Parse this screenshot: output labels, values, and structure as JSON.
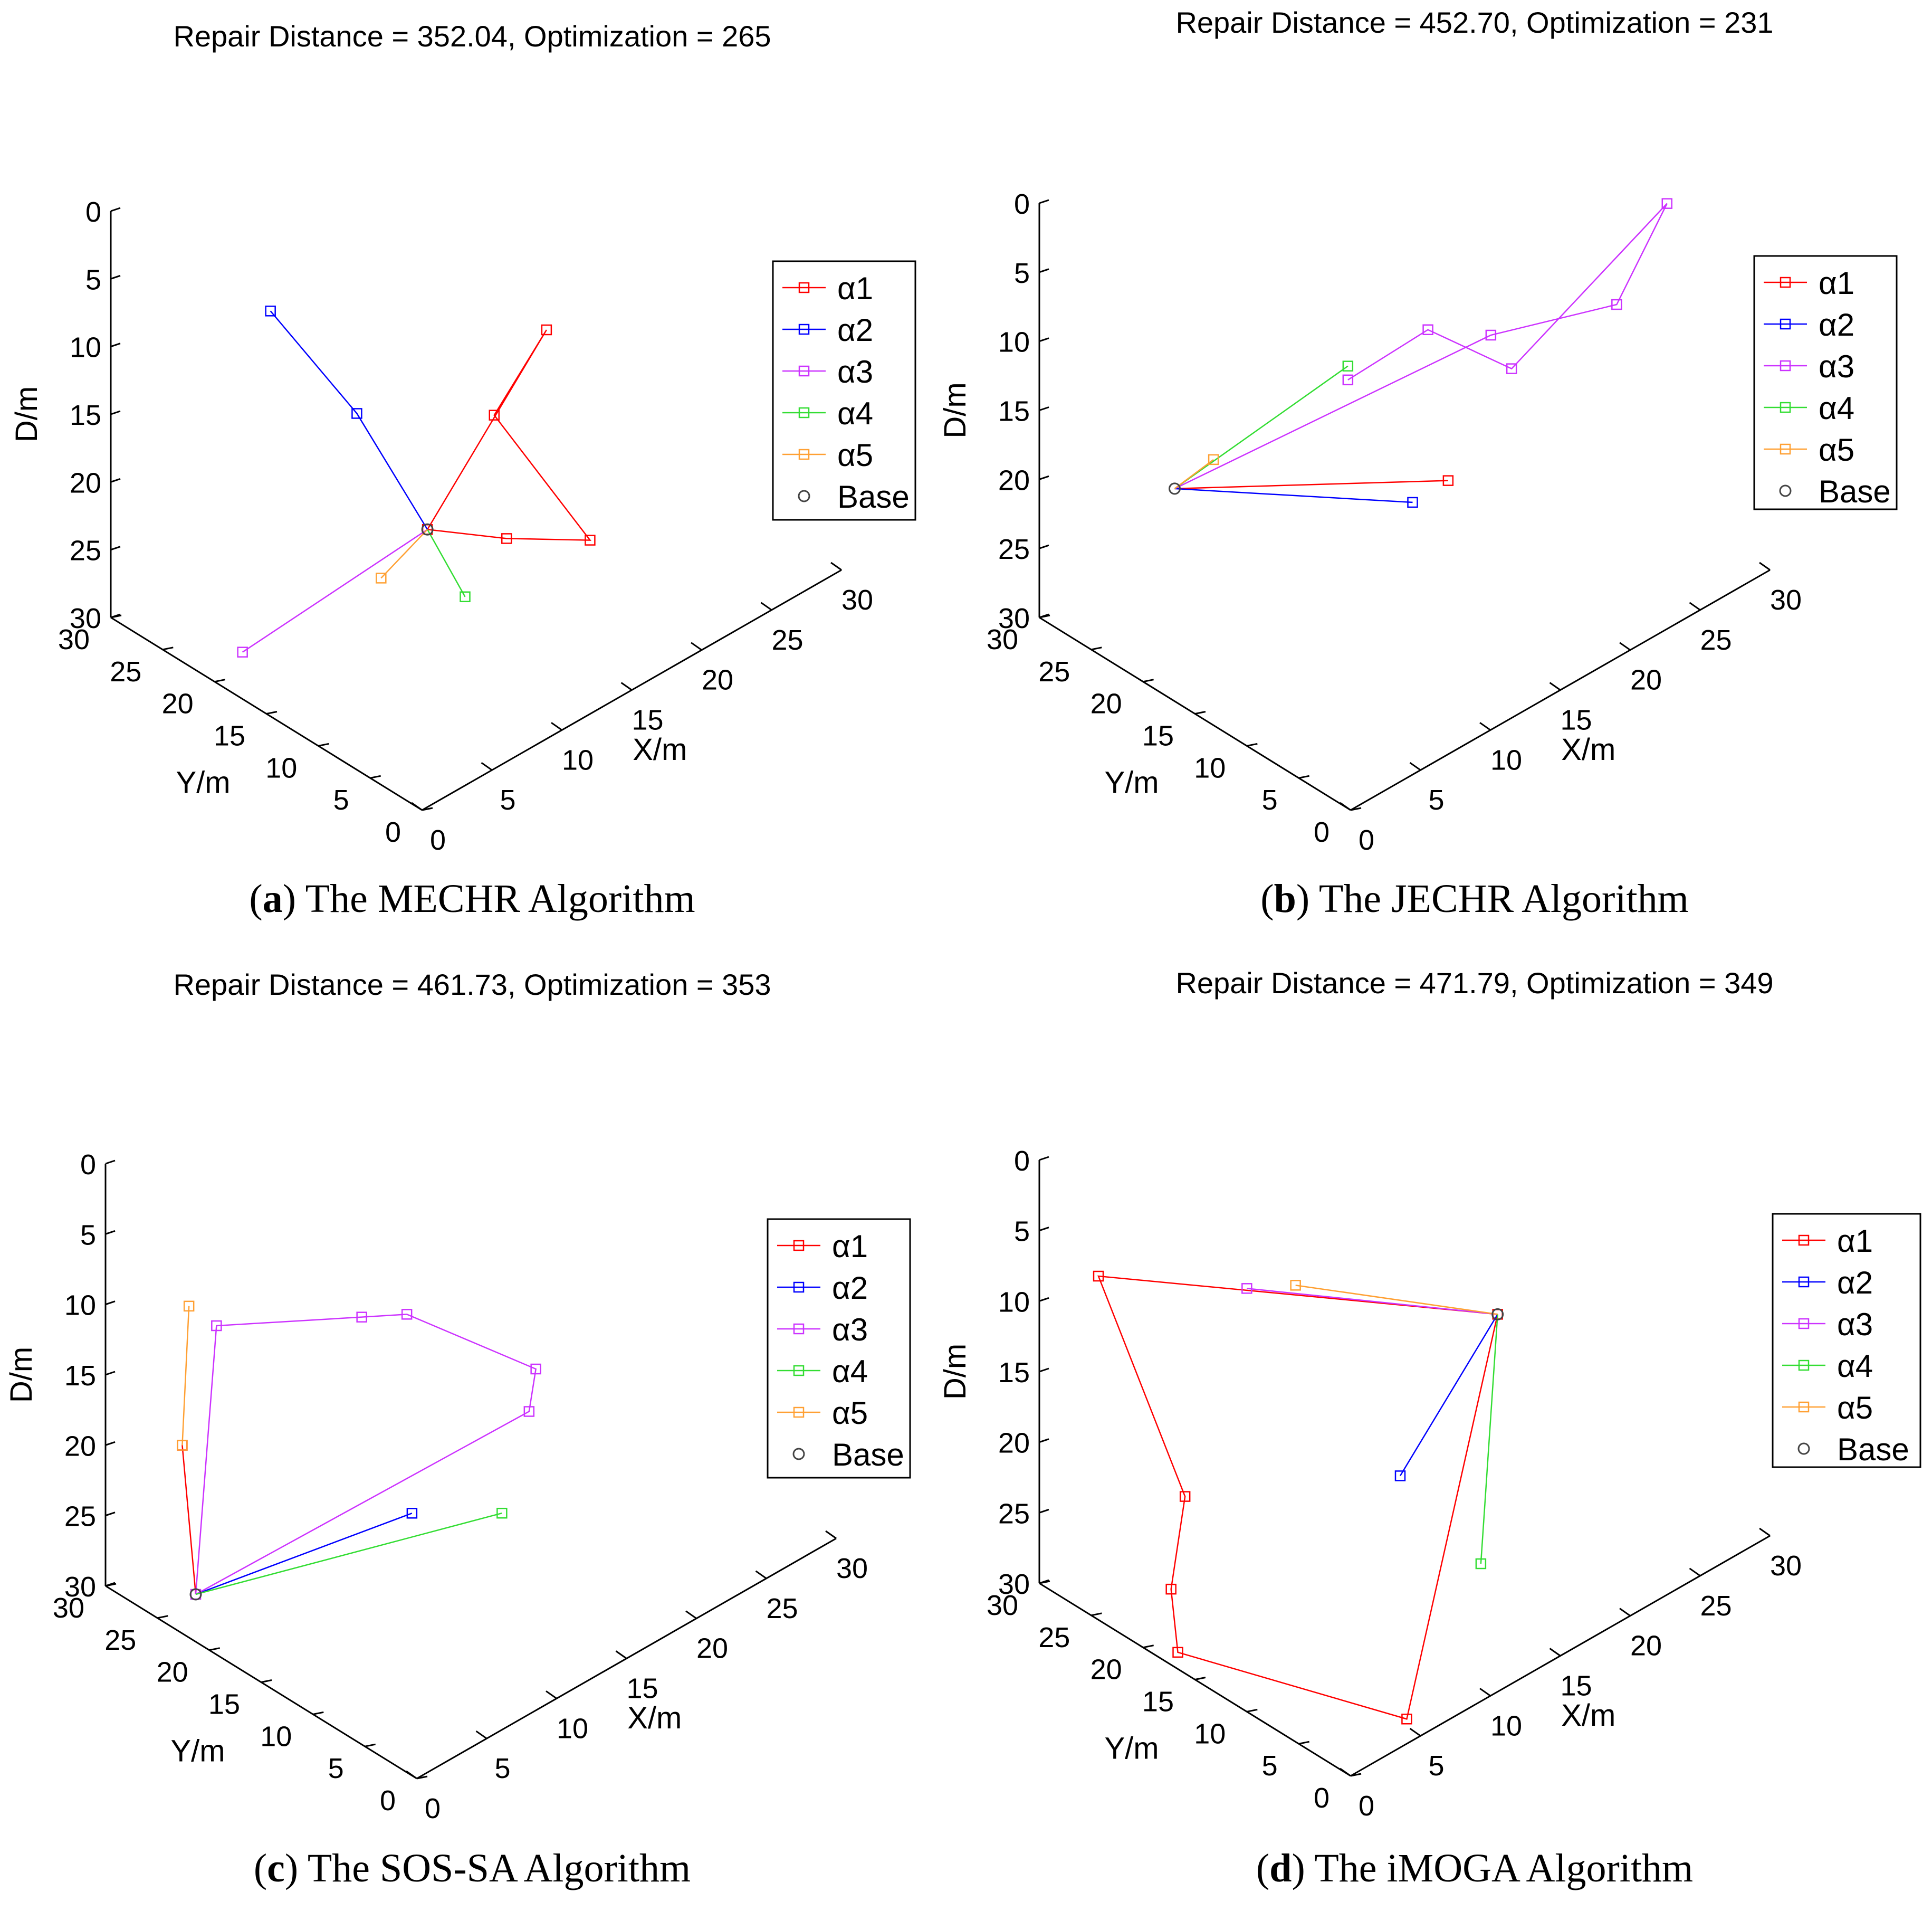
{
  "figure": {
    "panels": [
      {
        "id": "a",
        "letter": "a",
        "caption": "The MECHR Algorithm",
        "title": "Repair Distance = 352.04, Optimization = 265"
      },
      {
        "id": "b",
        "letter": "b",
        "caption": "The JECHR Algorithm",
        "title": "Repair Distance = 452.70, Optimization = 231"
      },
      {
        "id": "c",
        "letter": "c",
        "caption": "The SOS-SA Algorithm",
        "title": "Repair Distance = 461.73, Optimization = 353"
      },
      {
        "id": "d",
        "letter": "d",
        "caption": "The iMOGA Algorithm",
        "title": "Repair Distance = 471.79, Optimization = 349"
      }
    ]
  },
  "chart_data": [
    {
      "type": "line",
      "panel": "a",
      "title": "Repair Distance = 352.04, Optimization = 265",
      "xlabel": "X/m",
      "ylabel": "Y/m",
      "zlabel": "D/m",
      "xlim": [
        0,
        30
      ],
      "ylim": [
        0,
        30
      ],
      "zlim": [
        0,
        30
      ],
      "xticks": [
        "0",
        "5",
        "10",
        "15",
        "20",
        "25",
        "30"
      ],
      "yticks": [
        "0",
        "5",
        "10",
        "15",
        "20",
        "25",
        "30"
      ],
      "zticks": [
        "0",
        "5",
        "10",
        "15",
        "20",
        "25",
        "30"
      ],
      "legend": [
        "α1",
        "α2",
        "α3",
        "α4",
        "α5",
        "Base"
      ],
      "base": [
        8.1,
        10.4,
        19.0
      ],
      "series": [
        {
          "name": "α1",
          "color": "#ff0000",
          "points": [
            [
              8.1,
              10.4,
              19.0
            ],
            [
              10.5,
              6.0,
              19.0
            ],
            [
              13.5,
              2.0,
              19.0
            ],
            [
              8.5,
              4.5,
              8.0
            ],
            [
              11.5,
              3.5,
              3.0
            ],
            [
              8.1,
              10.4,
              19.0
            ]
          ]
        },
        {
          "name": "α2",
          "color": "#0000ff",
          "points": [
            [
              8.1,
              10.4,
              19.0
            ],
            [
              3.5,
              11.0,
              8.0
            ],
            [
              4.0,
              20.0,
              5.0
            ]
          ]
        },
        {
          "name": "α3",
          "color": "#cc33ff",
          "points": [
            [
              8.1,
              10.4,
              19.0
            ],
            [
              2.0,
              20.0,
              29.0
            ]
          ]
        },
        {
          "name": "α4",
          "color": "#33dd33",
          "points": [
            [
              8.1,
              10.4,
              19.0
            ],
            [
              7.9,
              6.5,
              22.0
            ]
          ]
        },
        {
          "name": "α5",
          "color": "#ffa033",
          "points": [
            [
              8.1,
              10.4,
              19.0
            ],
            [
              5.9,
              11.9,
              22.0
            ]
          ]
        }
      ]
    },
    {
      "type": "line",
      "panel": "b",
      "title": "Repair Distance = 452.70, Optimization = 231",
      "xlabel": "X/m",
      "ylabel": "Y/m",
      "zlabel": "D/m",
      "xlim": [
        0,
        30
      ],
      "ylim": [
        0,
        30
      ],
      "zlim": [
        0,
        30
      ],
      "xticks": [
        "0",
        "5",
        "10",
        "15",
        "20",
        "25",
        "30"
      ],
      "yticks": [
        "0",
        "5",
        "10",
        "15",
        "20",
        "25",
        "30"
      ],
      "zticks": [
        "0",
        "5",
        "10",
        "15",
        "20",
        "25",
        "30"
      ],
      "legend": [
        "α1",
        "α2",
        "α3",
        "α4",
        "α5",
        "Base"
      ],
      "base": [
        5.3,
        24.1,
        21.0
      ],
      "series": [
        {
          "name": "α1",
          "color": "#ff0000",
          "points": [
            [
              5.3,
              24.1,
              21.0
            ],
            [
              11.8,
              6.5,
              16.0
            ]
          ]
        },
        {
          "name": "α2",
          "color": "#0000ff",
          "points": [
            [
              5.3,
              24.1,
              21.0
            ],
            [
              10.0,
              7.5,
              17.0
            ]
          ]
        },
        {
          "name": "α3",
          "color": "#cc33ff",
          "points": [
            [
              5.3,
              24.1,
              21.0
            ],
            [
              13.0,
              4.0,
              5.0
            ],
            [
              22.0,
              4.0,
              8.0
            ],
            [
              23.3,
              0.9,
              0.0
            ],
            [
              13.0,
              2.0,
              6.5
            ],
            [
              8.5,
              4.0,
              2.0
            ],
            [
              5.0,
              7.0,
              5.0
            ]
          ]
        },
        {
          "name": "α4",
          "color": "#33dd33",
          "points": [
            [
              5.3,
              24.1,
              21.0
            ],
            [
              5.0,
              7.0,
              4.0
            ]
          ]
        },
        {
          "name": "α5",
          "color": "#ffa033",
          "points": [
            [
              5.3,
              24.1,
              21.0
            ],
            [
              6.0,
              21.3,
              18.0
            ]
          ]
        }
      ]
    },
    {
      "type": "line",
      "panel": "c",
      "title": "Repair Distance = 461.73, Optimization = 353",
      "xlabel": "X/m",
      "ylabel": "Y/m",
      "zlabel": "D/m",
      "xlim": [
        0,
        30
      ],
      "ylim": [
        0,
        30
      ],
      "zlim": [
        0,
        30
      ],
      "xticks": [
        "0",
        "5",
        "10",
        "15",
        "20",
        "25",
        "30"
      ],
      "yticks": [
        "0",
        "5",
        "10",
        "15",
        "20",
        "25",
        "30"
      ],
      "zticks": [
        "0",
        "5",
        "10",
        "15",
        "20",
        "25",
        "30"
      ],
      "legend": [
        "α1",
        "α2",
        "α3",
        "α4",
        "α5",
        "Base"
      ],
      "base": [
        2.0,
        24.0,
        29.0
      ],
      "series": [
        {
          "name": "α1",
          "color": "#ff0000",
          "points": [
            [
              2.0,
              24.0,
              29.0
            ],
            [
              2.0,
              25.3,
              19.0
            ]
          ]
        },
        {
          "name": "α2",
          "color": "#0000ff",
          "points": [
            [
              2.0,
              24.0,
              29.0
            ],
            [
              7.3,
              10.3,
              20.0
            ]
          ]
        },
        {
          "name": "α3",
          "color": "#cc33ff",
          "points": [
            [
              2.0,
              24.0,
              29.0
            ],
            [
              11.0,
              4.0,
              12.0
            ],
            [
              10.0,
              2.0,
              7.5
            ],
            [
              3.0,
              5.0,
              1.0
            ],
            [
              2.0,
              8.0,
              2.0
            ],
            [
              2.0,
              22.0,
              9.0
            ],
            [
              2.0,
              24.0,
              29.0
            ]
          ]
        },
        {
          "name": "α4",
          "color": "#33dd33",
          "points": [
            [
              2.0,
              24.0,
              29.0
            ],
            [
              9.8,
              5.0,
              19.0
            ]
          ]
        },
        {
          "name": "α5",
          "color": "#ffa033",
          "points": [
            [
              2.0,
              25.3,
              19.0
            ],
            [
              3.0,
              26.0,
              10.0
            ]
          ]
        }
      ]
    },
    {
      "type": "line",
      "panel": "d",
      "title": "Repair Distance = 471.79, Optimization = 349",
      "xlabel": "X/m",
      "ylabel": "Y/m",
      "zlabel": "D/m",
      "xlim": [
        0,
        30
      ],
      "ylim": [
        0,
        30
      ],
      "zlim": [
        0,
        30
      ],
      "xticks": [
        "0",
        "5",
        "10",
        "15",
        "20",
        "25",
        "30"
      ],
      "yticks": [
        "0",
        "5",
        "10",
        "15",
        "20",
        "25",
        "30"
      ],
      "zticks": [
        "0",
        "5",
        "10",
        "15",
        "20",
        "25",
        "30"
      ],
      "legend": [
        "α1",
        "α2",
        "α3",
        "α4",
        "α5",
        "Base"
      ],
      "base": [
        12.0,
        2.0,
        5.0
      ],
      "series": [
        {
          "name": "α1",
          "color": "#ff0000",
          "points": [
            [
              12.0,
              2.0,
              5.0
            ],
            [
              5.5,
              2.0,
              30.0
            ],
            [
              1.0,
              18.0,
              30.0
            ],
            [
              2.0,
              20.0,
              27.0
            ],
            [
              3.0,
              20.0,
              21.0
            ],
            [
              2.0,
              27.0,
              8.0
            ],
            [
              12.0,
              2.0,
              5.0
            ]
          ]
        },
        {
          "name": "α2",
          "color": "#0000ff",
          "points": [
            [
              12.0,
              2.0,
              5.0
            ],
            [
              8.0,
              6.0,
              16.0
            ]
          ]
        },
        {
          "name": "α3",
          "color": "#cc33ff",
          "points": [
            [
              12.0,
              2.0,
              5.0
            ],
            [
              0.0,
              10.0,
              0.0
            ]
          ]
        },
        {
          "name": "α4",
          "color": "#33dd33",
          "points": [
            [
              12.0,
              2.0,
              5.0
            ],
            [
              10.8,
              2.0,
              22.0
            ]
          ]
        },
        {
          "name": "α5",
          "color": "#ffa033",
          "points": [
            [
              12.0,
              2.0,
              5.0
            ],
            [
              2.0,
              8.0,
              0.0
            ]
          ]
        }
      ]
    }
  ]
}
